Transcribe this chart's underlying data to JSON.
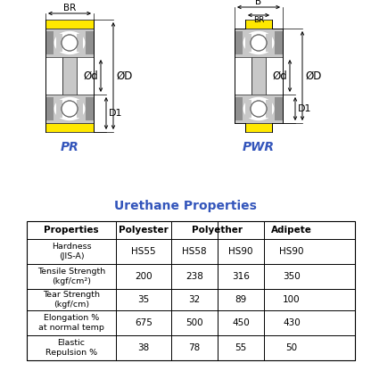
{
  "title": "Urethane Properties",
  "table_data": [
    [
      "Hardness\n(JIS-A)",
      "HS55",
      "HS58",
      "HS90",
      "HS90"
    ],
    [
      "Tensile Strength\n(kgf/cm²)",
      "200",
      "238",
      "316",
      "350"
    ],
    [
      "Tear Strength\n(kgf/cm)",
      "35",
      "32",
      "89",
      "100"
    ],
    [
      "Elongation %\nat normal temp",
      "675",
      "500",
      "450",
      "430"
    ],
    [
      "Elastic\nRepulsion %",
      "38",
      "78",
      "55",
      "50"
    ]
  ],
  "label_pr": "PR",
  "label_pwr": "PWR",
  "blue_color": "#3355BB",
  "yellow_color": "#FFE800",
  "light_gray": "#C8C8C8",
  "dark_gray": "#909090",
  "mid_gray": "#A8A8A8",
  "bg_color": "#FFFFFF"
}
